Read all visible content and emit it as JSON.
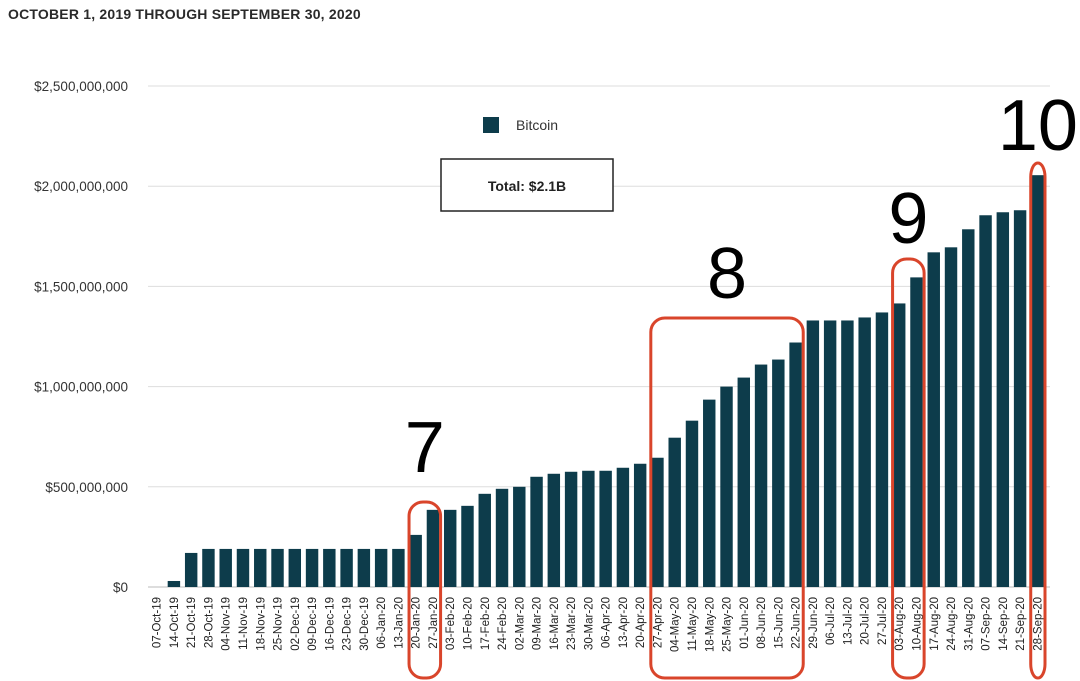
{
  "subtitle": "OCTOBER 1, 2019 THROUGH SEPTEMBER 30, 2020",
  "chart_data": {
    "type": "bar",
    "title": "",
    "xlabel": "",
    "ylabel": "",
    "ylim": [
      0,
      2500000000
    ],
    "y_ticks": [
      0,
      500000000,
      1000000000,
      1500000000,
      2000000000,
      2500000000
    ],
    "y_tick_labels": [
      "$0",
      "$500,000,000",
      "$1,000,000,000",
      "$1,500,000,000",
      "$2,000,000,000",
      "$2,500,000,000"
    ],
    "grid": true,
    "legend": {
      "position": "top-left",
      "entries": [
        "Bitcoin"
      ]
    },
    "categories": [
      "07-Oct-19",
      "14-Oct-19",
      "21-Oct-19",
      "28-Oct-19",
      "04-Nov-19",
      "11-Nov-19",
      "18-Nov-19",
      "25-Nov-19",
      "02-Dec-19",
      "09-Dec-19",
      "16-Dec-19",
      "23-Dec-19",
      "30-Dec-19",
      "06-Jan-20",
      "13-Jan-20",
      "20-Jan-20",
      "27-Jan-20",
      "03-Feb-20",
      "10-Feb-20",
      "17-Feb-20",
      "24-Feb-20",
      "02-Mar-20",
      "09-Mar-20",
      "16-Mar-20",
      "23-Mar-20",
      "30-Mar-20",
      "06-Apr-20",
      "13-Apr-20",
      "20-Apr-20",
      "27-Apr-20",
      "04-May-20",
      "11-May-20",
      "18-May-20",
      "25-May-20",
      "01-Jun-20",
      "08-Jun-20",
      "15-Jun-20",
      "22-Jun-20",
      "29-Jun-20",
      "06-Jul-20",
      "13-Jul-20",
      "20-Jul-20",
      "27-Jul-20",
      "03-Aug-20",
      "10-Aug-20",
      "17-Aug-20",
      "24-Aug-20",
      "31-Aug-20",
      "07-Sep-20",
      "14-Sep-20",
      "21-Sep-20",
      "28-Sep-20"
    ],
    "series": [
      {
        "name": "Bitcoin",
        "color": "#0d3c4b",
        "values": [
          0,
          30000000,
          170000000,
          190000000,
          190000000,
          190000000,
          190000000,
          190000000,
          190000000,
          190000000,
          190000000,
          190000000,
          190000000,
          190000000,
          190000000,
          260000000,
          385000000,
          385000000,
          405000000,
          465000000,
          490000000,
          500000000,
          550000000,
          565000000,
          575000000,
          580000000,
          580000000,
          595000000,
          615000000,
          645000000,
          745000000,
          830000000,
          935000000,
          1000000000,
          1045000000,
          1110000000,
          1135000000,
          1220000000,
          1330000000,
          1330000000,
          1330000000,
          1345000000,
          1370000000,
          1415000000,
          1545000000,
          1670000000,
          1695000000,
          1785000000,
          1855000000,
          1870000000,
          1880000000,
          2055000000
        ]
      }
    ],
    "annotations": [
      {
        "text": "Total: $2.1B",
        "type": "box"
      },
      {
        "text": "7",
        "range": [
          "20-Jan-20",
          "27-Jan-20"
        ],
        "color": "#d9452b"
      },
      {
        "text": "8",
        "range": [
          "27-Apr-20",
          "22-Jun-20"
        ],
        "color": "#d9452b"
      },
      {
        "text": "9",
        "range": [
          "03-Aug-20",
          "10-Aug-20"
        ],
        "color": "#d9452b"
      },
      {
        "text": "10",
        "range": [
          "28-Sep-20",
          "28-Sep-20"
        ],
        "color": "#d9452b"
      }
    ]
  }
}
